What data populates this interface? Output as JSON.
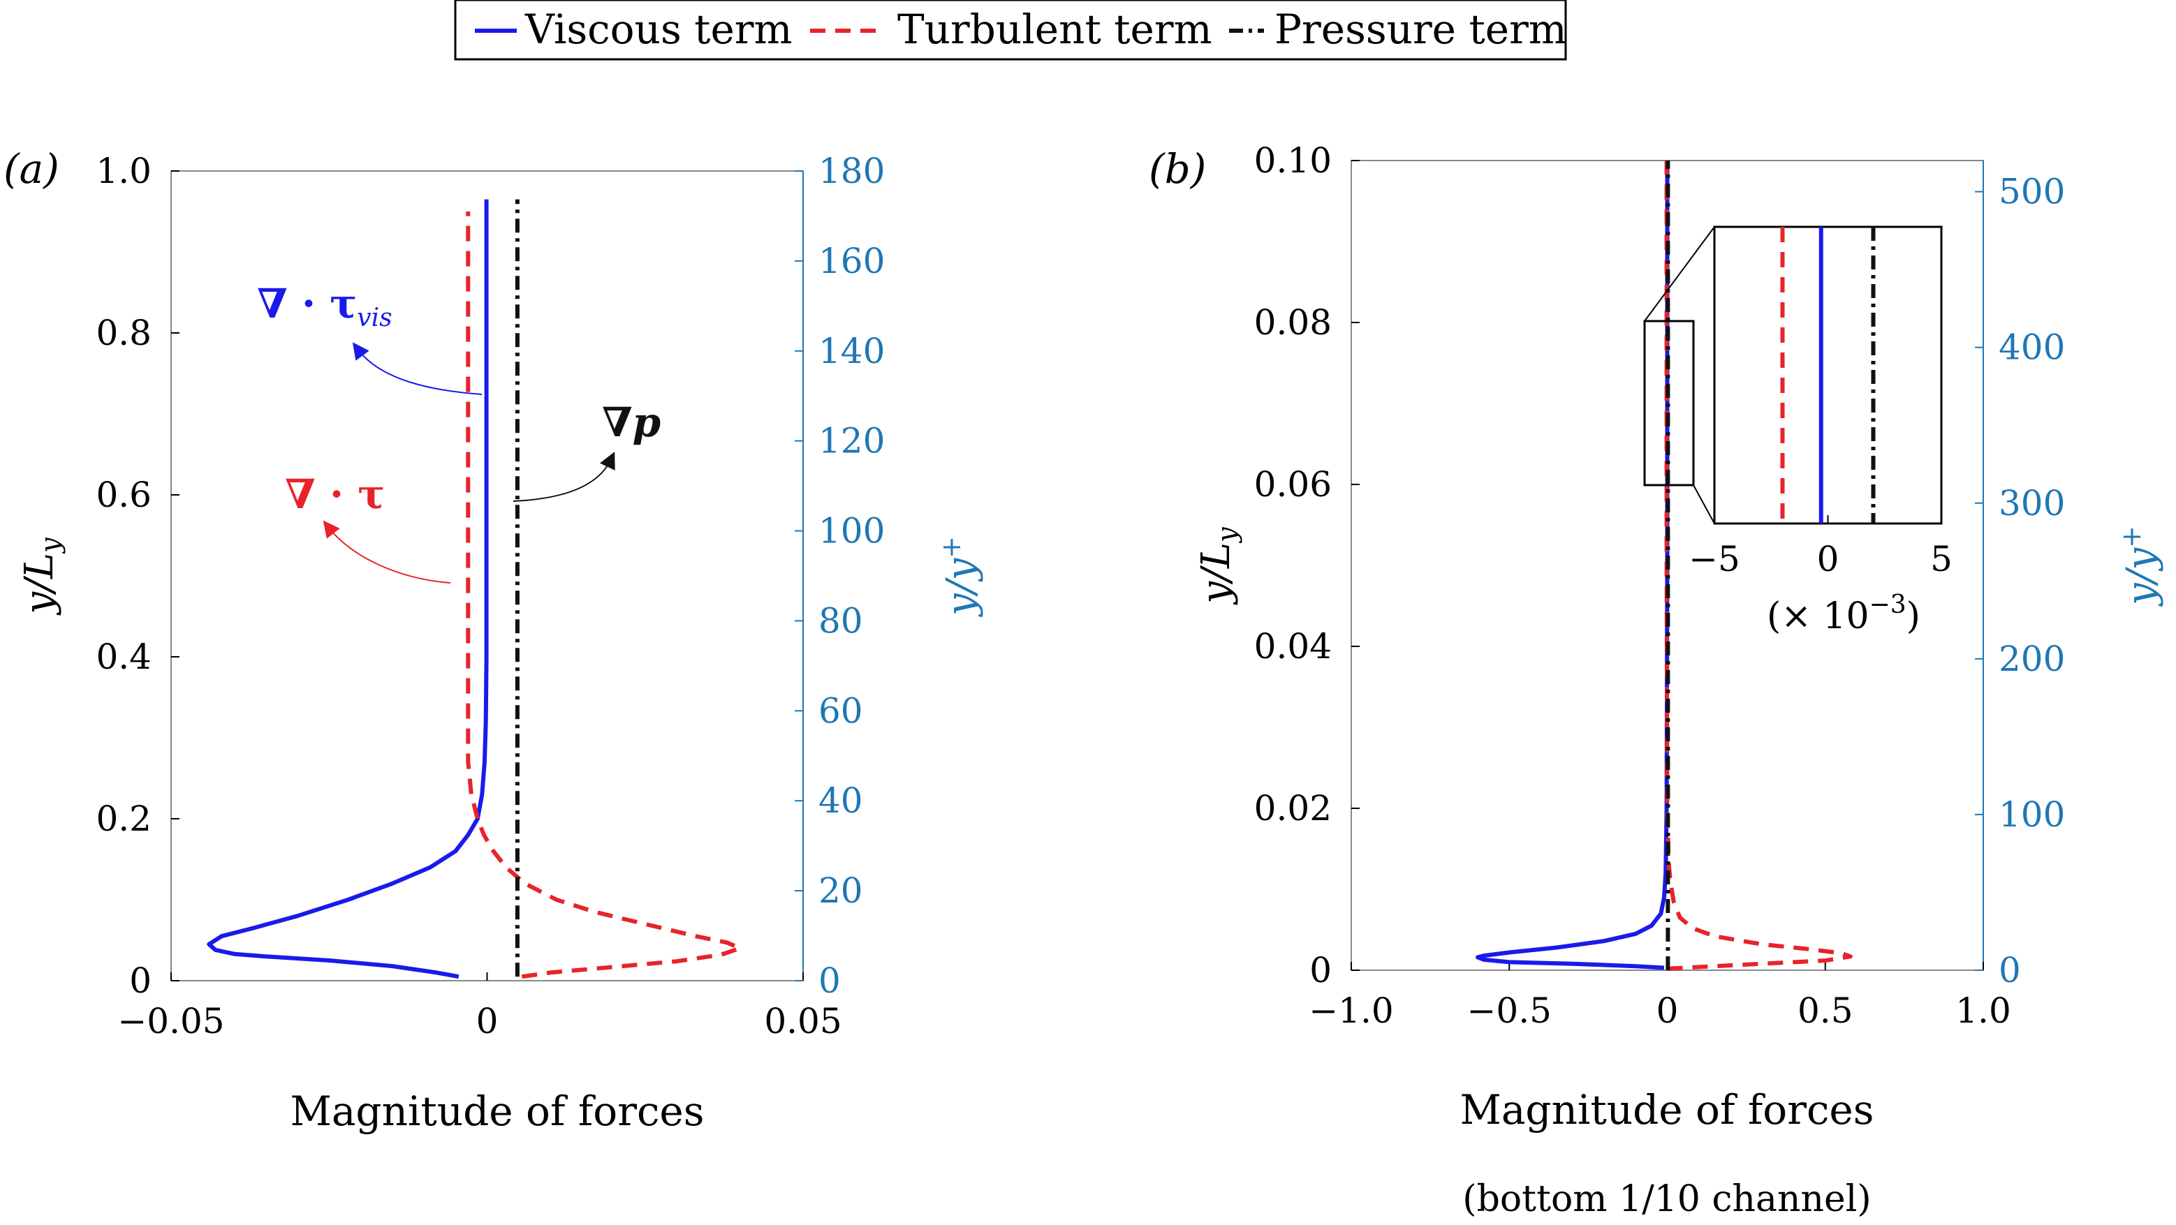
{
  "legend": {
    "items": [
      {
        "label": "Viscous term",
        "color": "#1a1aeb",
        "style": "solid"
      },
      {
        "label": "Turbulent term",
        "color": "#e8232a",
        "style": "dashed"
      },
      {
        "label": "Pressure term",
        "color": "#111111",
        "style": "dashdot"
      }
    ]
  },
  "colors": {
    "viscous": "#1a1aeb",
    "turbulent": "#e8232a",
    "pressure": "#111111",
    "right_axis": "#1f77b4"
  },
  "chart_data": [
    {
      "id": "a",
      "type": "line",
      "panel_label": "(a)",
      "xlabel": "Magnitude of forces",
      "ylabel": "y/L_y",
      "ylabel2": "y/y+",
      "xlim": [
        -0.05,
        0.05
      ],
      "ylim": [
        0,
        1.0
      ],
      "y2lim": [
        0,
        180
      ],
      "xticks": [
        {
          "v": -0.05,
          "label": "−0.05"
        },
        {
          "v": 0,
          "label": "0"
        },
        {
          "v": 0.05,
          "label": "0.05"
        }
      ],
      "yticks": [
        {
          "v": 0,
          "label": "0"
        },
        {
          "v": 0.2,
          "label": "0.2"
        },
        {
          "v": 0.4,
          "label": "0.4"
        },
        {
          "v": 0.6,
          "label": "0.6"
        },
        {
          "v": 0.8,
          "label": "0.8"
        },
        {
          "v": 1.0,
          "label": "1.0"
        }
      ],
      "y2ticks": [
        {
          "v": 0,
          "label": "0"
        },
        {
          "v": 20,
          "label": "20"
        },
        {
          "v": 40,
          "label": "40"
        },
        {
          "v": 60,
          "label": "60"
        },
        {
          "v": 80,
          "label": "80"
        },
        {
          "v": 100,
          "label": "100"
        },
        {
          "v": 120,
          "label": "120"
        },
        {
          "v": 140,
          "label": "140"
        },
        {
          "v": 160,
          "label": "160"
        },
        {
          "v": 180,
          "label": "180"
        }
      ],
      "annotations": [
        {
          "text": "∇ · τ_vis",
          "color": "#1a1aeb"
        },
        {
          "text": "∇p",
          "color": "#111111"
        },
        {
          "text": "∇ · τ",
          "color": "#e8232a"
        }
      ],
      "series": [
        {
          "name": "Viscous term",
          "key": "viscous",
          "points": [
            [
              -0.0045,
              0.005
            ],
            [
              -0.008,
              0.01
            ],
            [
              -0.015,
              0.018
            ],
            [
              -0.025,
              0.025
            ],
            [
              -0.035,
              0.03
            ],
            [
              -0.04,
              0.033
            ],
            [
              -0.043,
              0.038
            ],
            [
              -0.044,
              0.045
            ],
            [
              -0.042,
              0.055
            ],
            [
              -0.037,
              0.065
            ],
            [
              -0.03,
              0.08
            ],
            [
              -0.022,
              0.1
            ],
            [
              -0.015,
              0.12
            ],
            [
              -0.009,
              0.14
            ],
            [
              -0.005,
              0.16
            ],
            [
              -0.003,
              0.18
            ],
            [
              -0.0015,
              0.2
            ],
            [
              -0.0008,
              0.23
            ],
            [
              -0.0004,
              0.27
            ],
            [
              -0.0002,
              0.32
            ],
            [
              -0.0001,
              0.4
            ],
            [
              -0.0001,
              0.6
            ],
            [
              -0.0001,
              0.8
            ],
            [
              -0.0001,
              0.965
            ]
          ]
        },
        {
          "name": "Turbulent term",
          "key": "turbulent",
          "points": [
            [
              0.0055,
              0.005
            ],
            [
              0.01,
              0.01
            ],
            [
              0.02,
              0.017
            ],
            [
              0.03,
              0.024
            ],
            [
              0.037,
              0.032
            ],
            [
              0.04,
              0.04
            ],
            [
              0.038,
              0.047
            ],
            [
              0.033,
              0.055
            ],
            [
              0.025,
              0.07
            ],
            [
              0.017,
              0.085
            ],
            [
              0.011,
              0.1
            ],
            [
              0.006,
              0.12
            ],
            [
              0.003,
              0.14
            ],
            [
              0.001,
              0.16
            ],
            [
              -0.0005,
              0.18
            ],
            [
              -0.0015,
              0.2
            ],
            [
              -0.0025,
              0.23
            ],
            [
              -0.003,
              0.27
            ],
            [
              -0.003,
              0.32
            ],
            [
              -0.003,
              0.45
            ],
            [
              -0.003,
              0.6
            ],
            [
              -0.003,
              0.8
            ],
            [
              -0.003,
              0.95
            ]
          ]
        },
        {
          "name": "Pressure term",
          "key": "pressure",
          "points": [
            [
              0.0048,
              0.005
            ],
            [
              0.0048,
              0.965
            ]
          ]
        }
      ]
    },
    {
      "id": "b",
      "type": "line",
      "panel_label": "(b)",
      "xlabel": "Magnitude of forces",
      "subtitle": "(bottom 1/10 channel)",
      "ylabel": "y/L_y",
      "ylabel2": "y/y+",
      "xlim": [
        -1.0,
        1.0
      ],
      "ylim": [
        0,
        0.1
      ],
      "y2lim": [
        0,
        520
      ],
      "xticks": [
        {
          "v": -1.0,
          "label": "−1.0"
        },
        {
          "v": -0.5,
          "label": "−0.5"
        },
        {
          "v": 0,
          "label": "0"
        },
        {
          "v": 0.5,
          "label": "0.5"
        },
        {
          "v": 1.0,
          "label": "1.0"
        }
      ],
      "yticks": [
        {
          "v": 0,
          "label": "0"
        },
        {
          "v": 0.02,
          "label": "0.02"
        },
        {
          "v": 0.04,
          "label": "0.04"
        },
        {
          "v": 0.06,
          "label": "0.06"
        },
        {
          "v": 0.08,
          "label": "0.08"
        },
        {
          "v": 0.1,
          "label": "0.10"
        }
      ],
      "y2ticks": [
        {
          "v": 0,
          "label": "0"
        },
        {
          "v": 100,
          "label": "100"
        },
        {
          "v": 200,
          "label": "200"
        },
        {
          "v": 300,
          "label": "300"
        },
        {
          "v": 400,
          "label": "400"
        },
        {
          "v": 500,
          "label": "500"
        }
      ],
      "series": [
        {
          "name": "Viscous term",
          "key": "viscous",
          "points": [
            [
              -0.01,
              0.0003
            ],
            [
              -0.1,
              0.0005
            ],
            [
              -0.3,
              0.0008
            ],
            [
              -0.5,
              0.001
            ],
            [
              -0.58,
              0.0013
            ],
            [
              -0.6,
              0.0016
            ],
            [
              -0.58,
              0.0018
            ],
            [
              -0.5,
              0.0022
            ],
            [
              -0.35,
              0.0028
            ],
            [
              -0.2,
              0.0036
            ],
            [
              -0.1,
              0.0045
            ],
            [
              -0.05,
              0.0055
            ],
            [
              -0.02,
              0.007
            ],
            [
              -0.01,
              0.009
            ],
            [
              -0.005,
              0.012
            ],
            [
              -0.002,
              0.02
            ],
            [
              0,
              0.05
            ],
            [
              0,
              0.1
            ]
          ]
        },
        {
          "name": "Turbulent term",
          "key": "turbulent",
          "points": [
            [
              0,
              0.0002
            ],
            [
              0.1,
              0.0004
            ],
            [
              0.3,
              0.0008
            ],
            [
              0.5,
              0.0012
            ],
            [
              0.58,
              0.0017
            ],
            [
              0.55,
              0.0021
            ],
            [
              0.45,
              0.0026
            ],
            [
              0.3,
              0.0032
            ],
            [
              0.15,
              0.0042
            ],
            [
              0.08,
              0.0052
            ],
            [
              0.04,
              0.0065
            ],
            [
              0.02,
              0.0085
            ],
            [
              0.01,
              0.011
            ],
            [
              0.005,
              0.013
            ],
            [
              0,
              0.02
            ],
            [
              -0.002,
              0.05
            ],
            [
              -0.002,
              0.1
            ]
          ]
        },
        {
          "name": "Pressure term",
          "key": "pressure",
          "points": [
            [
              0.002,
              0
            ],
            [
              0.002,
              0.1
            ]
          ]
        }
      ],
      "inset": {
        "xlim": [
          -5,
          5
        ],
        "xticks": [
          {
            "v": -5,
            "label": "−5"
          },
          {
            "v": 0,
            "label": "0"
          },
          {
            "v": 5,
            "label": "5"
          }
        ],
        "multiplier": "(× 10−3)",
        "lines": [
          {
            "key": "turbulent",
            "x": -2.0
          },
          {
            "key": "viscous",
            "x": -0.3
          },
          {
            "key": "pressure",
            "x": 2.0
          }
        ]
      }
    }
  ]
}
